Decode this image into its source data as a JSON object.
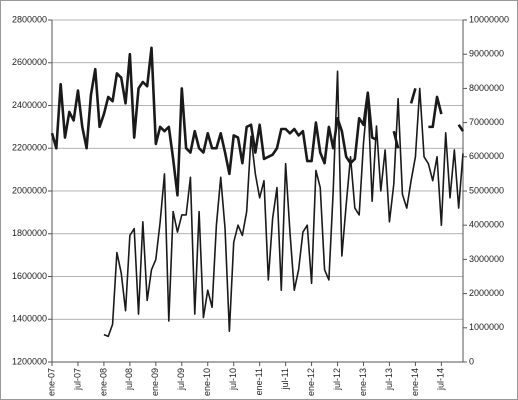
{
  "chart_data": {
    "type": "line",
    "categories": [
      "ene-07",
      null,
      null,
      null,
      null,
      null,
      "jul-07",
      null,
      null,
      null,
      null,
      null,
      "ene-08",
      null,
      null,
      null,
      null,
      null,
      "jul-08",
      null,
      null,
      null,
      null,
      null,
      "ene-09",
      null,
      null,
      null,
      null,
      null,
      "jul-09",
      null,
      null,
      null,
      null,
      null,
      "ene-10",
      null,
      null,
      null,
      null,
      null,
      "jul-10",
      null,
      null,
      null,
      null,
      null,
      "ene-11",
      null,
      null,
      null,
      null,
      null,
      "jul-11",
      null,
      null,
      null,
      null,
      null,
      "ene-12",
      null,
      null,
      null,
      null,
      null,
      "jul-12",
      null,
      null,
      null,
      null,
      null,
      "ene-13",
      null,
      null,
      null,
      null,
      null,
      "jul-13",
      null,
      null,
      null,
      null,
      null,
      "ene-14",
      null,
      null,
      null,
      null,
      null,
      "jul-14",
      null,
      null,
      null,
      null,
      null
    ],
    "series": [
      {
        "color": "#1a1a1a",
        "values": [
          2270000,
          2200000,
          2500000,
          2250000,
          2370000,
          2330000,
          2470000,
          2300000,
          2200000,
          2450000,
          2570000,
          2300000,
          2360000,
          2440000,
          2420000,
          2550000,
          2530000,
          2410000,
          2640000,
          2250000,
          2480000,
          2510000,
          2490000,
          2670000,
          2220000,
          2300000,
          2280000,
          2300000,
          2150000,
          1980000,
          2480000,
          2200000,
          2180000,
          2280000,
          2200000,
          2180000,
          2270000,
          2200000,
          2200000,
          2270000,
          2180000,
          2080000,
          2260000,
          2250000,
          2130000,
          2300000,
          2310000,
          2180000,
          2310000,
          2150000,
          2160000,
          2170000,
          2200000,
          2290000,
          2290000,
          2270000,
          2290000,
          2260000,
          2280000,
          2140000,
          2140000,
          2320000,
          2180000,
          2130000,
          2300000,
          2200000,
          2340000,
          2280000,
          2160000,
          2130000,
          2150000,
          2340000,
          2310000,
          2460000,
          2250000,
          2240000,
          null,
          null,
          null,
          2280000,
          2200000,
          null,
          null,
          2410000,
          2480000,
          null,
          null,
          2300000,
          2300000,
          2440000,
          2360000,
          null,
          null,
          null,
          2310000,
          2280000
        ]
      },
      {
        "color": "#1a1a1a",
        "axis": "y2",
        "values": [
          null,
          null,
          null,
          null,
          null,
          null,
          null,
          null,
          null,
          null,
          null,
          null,
          800000,
          750000,
          1100000,
          3200000,
          2600000,
          1500000,
          3700000,
          3900000,
          1400000,
          4100000,
          1800000,
          2700000,
          3000000,
          4100000,
          5500000,
          1200000,
          4400000,
          3800000,
          4300000,
          4300000,
          5400000,
          1400000,
          4400000,
          1300000,
          2100000,
          1600000,
          4000000,
          5400000,
          3900000,
          900000,
          3500000,
          4000000,
          3700000,
          4400000,
          6600000,
          5500000,
          4800000,
          5300000,
          2400000,
          4200000,
          5100000,
          2100000,
          5800000,
          3800000,
          2100000,
          2700000,
          3800000,
          4000000,
          2300000,
          5600000,
          5100000,
          2700000,
          2400000,
          5000000,
          8500000,
          3100000,
          4600000,
          6000000,
          4500000,
          4300000,
          6400000,
          7800000,
          4700000,
          6900000,
          5000000,
          6200000,
          4100000,
          5200000,
          7700000,
          4900000,
          4500000,
          5300000,
          6000000,
          8000000,
          6000000,
          5800000,
          5300000,
          6000000,
          4000000,
          6700000,
          4800000,
          6200000,
          4500000,
          6100000
        ]
      }
    ],
    "ylim": [
      1200000,
      2800000
    ],
    "yticks": [
      1200000,
      1400000,
      1600000,
      1800000,
      2000000,
      2200000,
      2400000,
      2600000,
      2800000
    ],
    "y2lim": [
      0,
      10000000
    ],
    "y2ticks": [
      0,
      1000000,
      2000000,
      3000000,
      4000000,
      5000000,
      6000000,
      7000000,
      8000000,
      9000000,
      10000000
    ],
    "grid": true
  }
}
